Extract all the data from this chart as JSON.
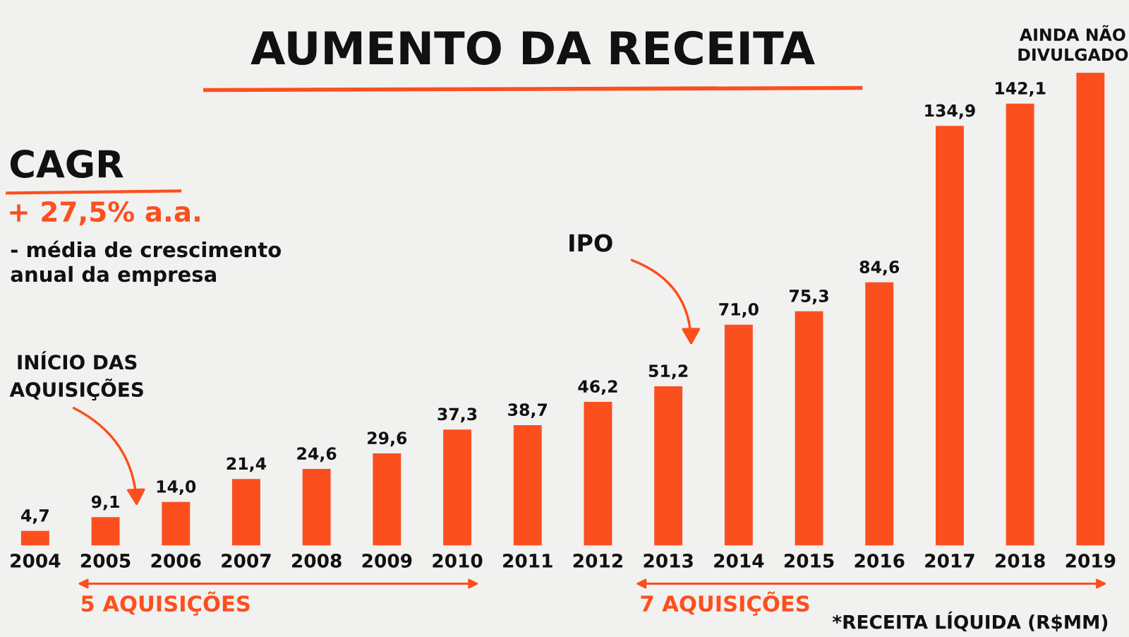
{
  "chart_data": {
    "type": "bar",
    "title": "AUMENTO DA RECEITA",
    "categories": [
      "2004",
      "2005",
      "2006",
      "2007",
      "2008",
      "2009",
      "2010",
      "2011",
      "2012",
      "2013",
      "2014",
      "2015",
      "2016",
      "2017",
      "2018",
      "2019"
    ],
    "values": [
      4.7,
      9.1,
      14.0,
      21.4,
      24.6,
      29.6,
      37.3,
      38.7,
      46.2,
      51.2,
      71.0,
      75.3,
      84.6,
      134.9,
      142.1,
      152
    ],
    "value_labels": [
      "4,7",
      "9,1",
      "14,0",
      "21,4",
      "24,6",
      "29,6",
      "37,3",
      "38,7",
      "46,2",
      "51,2",
      "71,0",
      "75,3",
      "84,6",
      "134,9",
      "142,1",
      null
    ],
    "color": "#fc4f1e",
    "annotations": [
      "CAGR",
      "+ 27,5% a.a.",
      "- média de crescimento\nanual da empresa",
      "INÍCIO DAS\nAQUISIÇÕES",
      "IPO",
      "AINDA NÃO\nDIVULGADO",
      "5 AQUISIÇÕES",
      "7 AQUISIÇÕES",
      "*RECEITA LÍQUIDA (R$MM)"
    ]
  }
}
